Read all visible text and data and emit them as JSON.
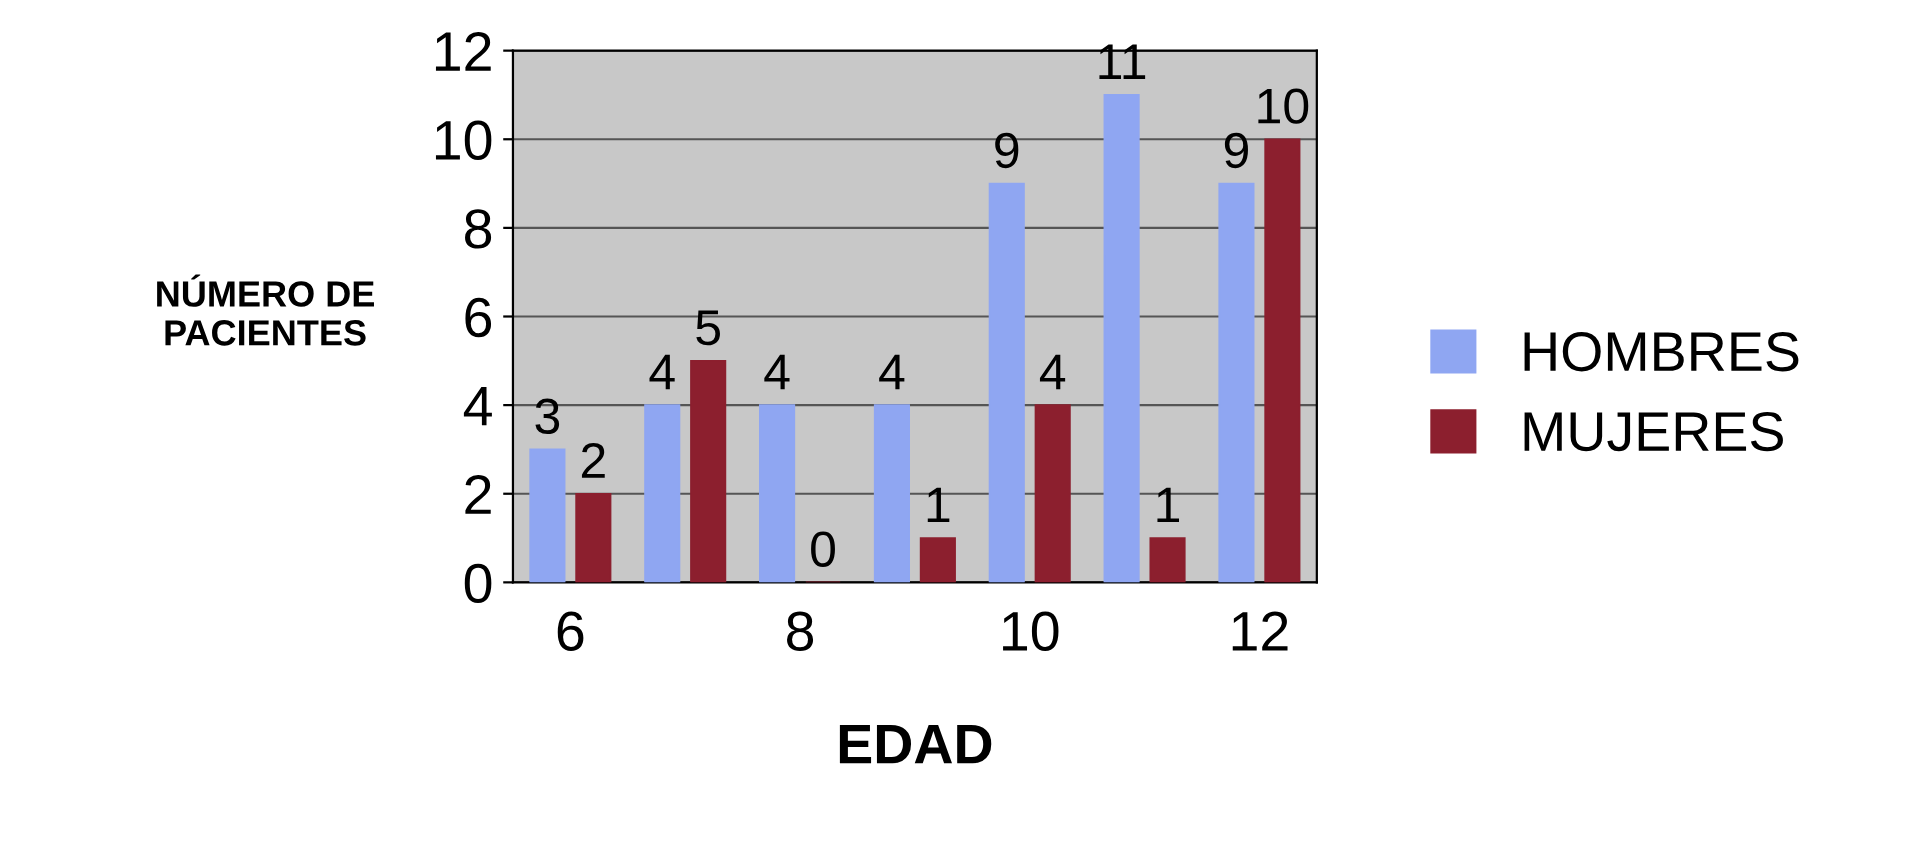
{
  "chart_data": {
    "type": "bar",
    "xlabel": "EDAD",
    "ylabel": "NÚMERO DE\nPACIENTES",
    "categories": [
      "6",
      null,
      "8",
      null,
      "10",
      null,
      "12"
    ],
    "series": [
      {
        "name": "HOMBRES",
        "color": "#8fa6f2",
        "values": [
          3,
          4,
          4,
          4,
          9,
          11,
          9
        ]
      },
      {
        "name": "MUJERES",
        "color": "#8c1f2e",
        "values": [
          2,
          5,
          0,
          1,
          4,
          1,
          10
        ]
      }
    ],
    "ylim": [
      0,
      12
    ],
    "yticks": [
      0,
      2,
      4,
      6,
      8,
      10,
      12
    ],
    "grid": "y",
    "legend": "right",
    "data_labels": true
  }
}
